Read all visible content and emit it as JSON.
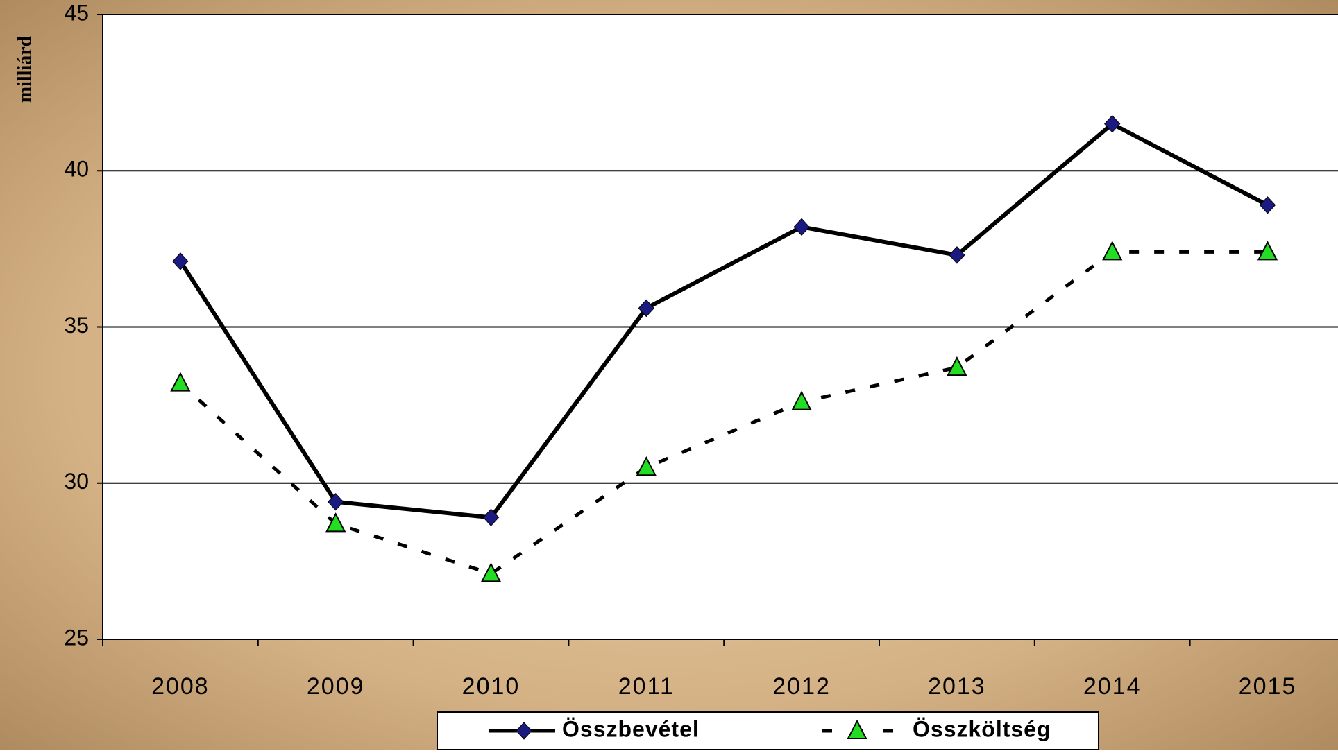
{
  "chart_data": {
    "type": "line",
    "y_label": "milliárd",
    "categories": [
      "2008",
      "2009",
      "2010",
      "2011",
      "2012",
      "2013",
      "2014",
      "2015"
    ],
    "series": [
      {
        "name": "Összbevétel",
        "color": "#000000",
        "marker_color": "#1a1a80",
        "marker": "diamond",
        "dash": "solid",
        "values": [
          37.1,
          29.4,
          28.9,
          35.6,
          38.2,
          37.3,
          41.5,
          38.9
        ]
      },
      {
        "name": "Összköltség",
        "color": "#000000",
        "marker_color": "#22dd22",
        "marker": "triangle",
        "dash": "dashed",
        "values": [
          33.2,
          28.7,
          27.1,
          30.5,
          32.6,
          33.7,
          37.4,
          37.4
        ]
      }
    ],
    "ylim": [
      25,
      45
    ],
    "yticks": [
      25,
      30,
      35,
      40,
      45
    ],
    "grid": true
  }
}
